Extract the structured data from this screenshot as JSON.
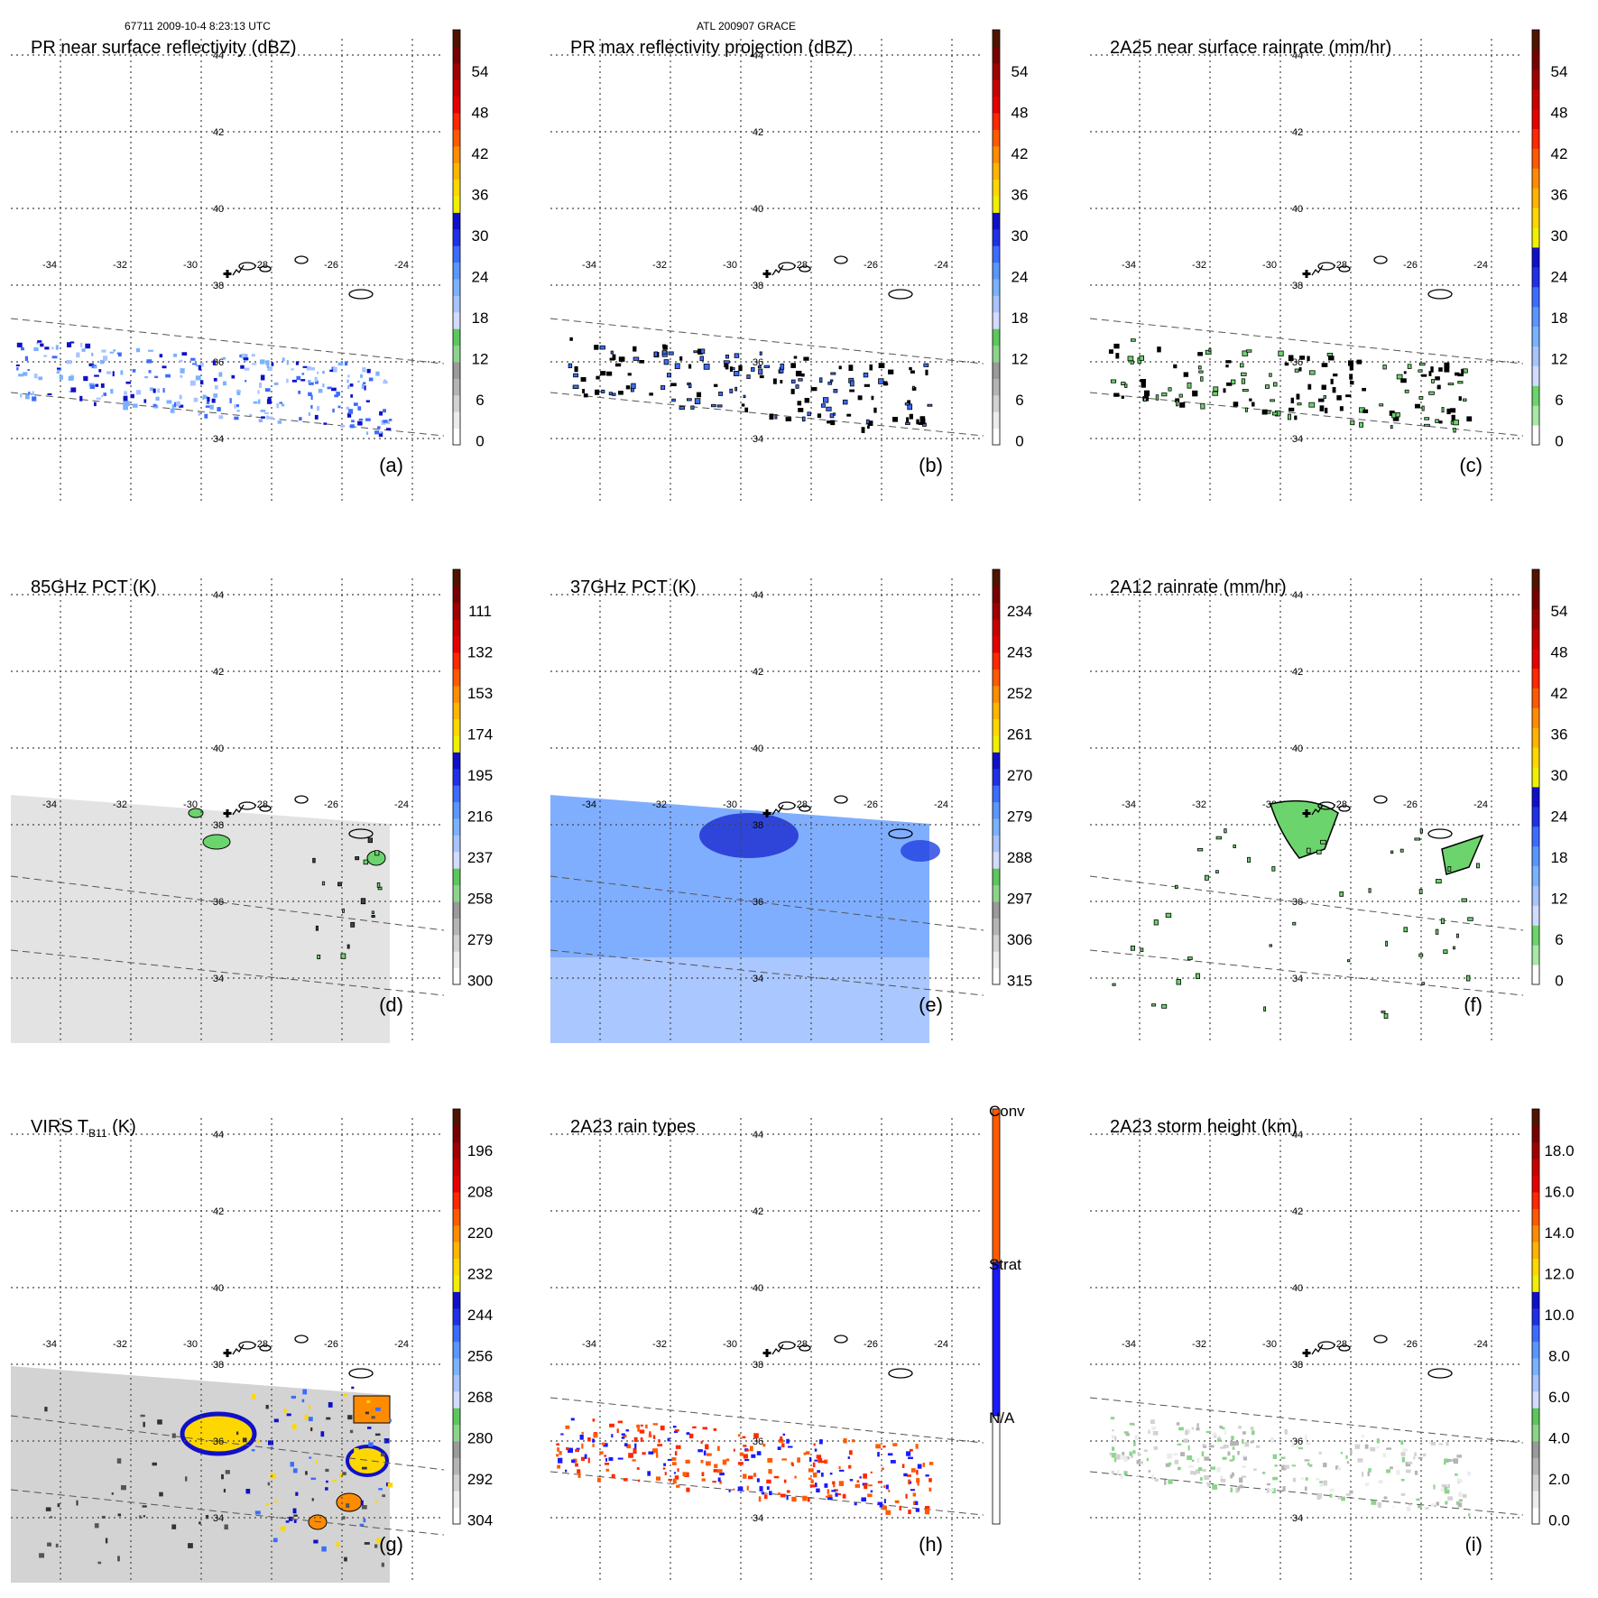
{
  "header": {
    "orbit_time": "67711 2009-10-4 8:23:13 UTC",
    "storm": "ATL 200907 GRACE"
  },
  "colors": {
    "scale10": [
      "#ffffff",
      "#ececec",
      "#d2d2d2",
      "#b4b4b4",
      "#9a9a9a",
      "#8cd48c",
      "#5cc85c",
      "#d2dcff",
      "#a8c4ff",
      "#7ab2ff",
      "#5a96ff",
      "#3c6cff",
      "#2030e8",
      "#1010c8",
      "#f0f000",
      "#ffd700",
      "#ffb400",
      "#ff8c00",
      "#ff5a00",
      "#ff2800",
      "#e60000",
      "#c80000",
      "#a00000",
      "#780000",
      "#501400"
    ],
    "scale6": [
      "#ffffff",
      "#a8e8a8",
      "#6cd46c",
      "#d2dcff",
      "#a8c4ff",
      "#7ab2ff",
      "#5a96ff",
      "#3c6cff",
      "#2030e8",
      "#1010c8",
      "#f0f000",
      "#ffd700",
      "#ffb400",
      "#ff8c00",
      "#ff5a00",
      "#ff2800",
      "#e60000",
      "#c80000",
      "#a00000",
      "#780000",
      "#501400"
    ],
    "raintype": [
      "#ffffff",
      "#1a1aff",
      "#ff5a00"
    ],
    "pct37": "#6aa0ff",
    "pct85": "#dcdcdc",
    "virs": "#c8c8c8"
  },
  "chart_data": [
    {
      "id": "a",
      "type": "heatmap",
      "title": "PR near surface reflectivity (dBZ)",
      "panel_label": "(a)",
      "colorbar": {
        "ticks": [
          "54",
          "48",
          "42",
          "36",
          "30",
          "24",
          "18",
          "12",
          "6",
          "0"
        ],
        "scale": "scale10"
      },
      "lat_ticks": [
        "44",
        "42",
        "40",
        "38",
        "36",
        "34"
      ],
      "lon_ticks": [
        "-34",
        "-32",
        "-30",
        "-28",
        "-26",
        "-24"
      ]
    },
    {
      "id": "b",
      "type": "heatmap",
      "title": "PR max reflectivity projection (dBZ)",
      "panel_label": "(b)",
      "colorbar": {
        "ticks": [
          "54",
          "48",
          "42",
          "36",
          "30",
          "24",
          "18",
          "12",
          "6",
          "0"
        ],
        "scale": "scale10"
      },
      "lat_ticks": [
        "44",
        "42",
        "40",
        "38",
        "36",
        "34"
      ],
      "lon_ticks": [
        "-34",
        "-32",
        "-30",
        "-28",
        "-26",
        "-24"
      ]
    },
    {
      "id": "c",
      "type": "heatmap",
      "title": "2A25 near surface rainrate (mm/hr)",
      "panel_label": "(c)",
      "colorbar": {
        "ticks": [
          "54",
          "48",
          "42",
          "36",
          "30",
          "24",
          "18",
          "12",
          "6",
          "0"
        ],
        "scale": "scale6"
      },
      "lat_ticks": [
        "44",
        "42",
        "40",
        "38",
        "36",
        "34"
      ],
      "lon_ticks": [
        "-34",
        "-32",
        "-30",
        "-28",
        "-26",
        "-24"
      ]
    },
    {
      "id": "d",
      "type": "heatmap",
      "title": "85GHz PCT (K)",
      "panel_label": "(d)",
      "colorbar": {
        "ticks": [
          "111",
          "132",
          "153",
          "174",
          "195",
          "216",
          "237",
          "258",
          "279",
          "300"
        ],
        "scale": "scale10"
      },
      "lat_ticks": [
        "44",
        "42",
        "40",
        "38",
        "36",
        "34"
      ],
      "lon_ticks": [
        "-34",
        "-32",
        "-30",
        "-28",
        "-26",
        "-24"
      ]
    },
    {
      "id": "e",
      "type": "heatmap",
      "title": "37GHz PCT (K)",
      "panel_label": "(e)",
      "colorbar": {
        "ticks": [
          "234",
          "243",
          "252",
          "261",
          "270",
          "279",
          "288",
          "297",
          "306",
          "315"
        ],
        "scale": "scale10"
      },
      "lat_ticks": [
        "44",
        "42",
        "40",
        "38",
        "36",
        "34"
      ],
      "lon_ticks": [
        "-34",
        "-32",
        "-30",
        "-28",
        "-26",
        "-24"
      ]
    },
    {
      "id": "f",
      "type": "heatmap",
      "title": "2A12 rainrate (mm/hr)",
      "panel_label": "(f)",
      "colorbar": {
        "ticks": [
          "54",
          "48",
          "42",
          "36",
          "30",
          "24",
          "18",
          "12",
          "6",
          "0"
        ],
        "scale": "scale6"
      },
      "lat_ticks": [
        "44",
        "42",
        "40",
        "38",
        "36",
        "34"
      ],
      "lon_ticks": [
        "-34",
        "-32",
        "-30",
        "-28",
        "-26",
        "-24"
      ]
    },
    {
      "id": "g",
      "type": "heatmap",
      "title": "VIRS T",
      "title_sub": "B11",
      "title_suffix": " (K)",
      "panel_label": "(g)",
      "colorbar": {
        "ticks": [
          "196",
          "208",
          "220",
          "232",
          "244",
          "256",
          "268",
          "280",
          "292",
          "304"
        ],
        "scale": "scale10"
      },
      "lat_ticks": [
        "44",
        "42",
        "40",
        "38",
        "36",
        "34"
      ],
      "lon_ticks": [
        "-34",
        "-32",
        "-30",
        "-28",
        "-26",
        "-24"
      ]
    },
    {
      "id": "h",
      "type": "heatmap",
      "title": "2A23 rain types",
      "panel_label": "(h)",
      "colorbar": {
        "ticks": [
          "Conv",
          "Strat",
          "N/A"
        ],
        "scale": "raintype"
      },
      "lat_ticks": [
        "44",
        "42",
        "40",
        "38",
        "36",
        "34"
      ],
      "lon_ticks": [
        "-34",
        "-32",
        "-30",
        "-28",
        "-26",
        "-24"
      ]
    },
    {
      "id": "i",
      "type": "heatmap",
      "title": "2A23 storm height (km)",
      "panel_label": "(i)",
      "colorbar": {
        "ticks": [
          "18.0",
          "16.0",
          "14.0",
          "12.0",
          "10.0",
          "8.0",
          "6.0",
          "4.0",
          "2.0",
          "0.0"
        ],
        "scale": "scale10"
      },
      "lat_ticks": [
        "44",
        "42",
        "40",
        "38",
        "36",
        "34"
      ],
      "lon_ticks": [
        "-34",
        "-32",
        "-30",
        "-28",
        "-26",
        "-24"
      ]
    }
  ]
}
